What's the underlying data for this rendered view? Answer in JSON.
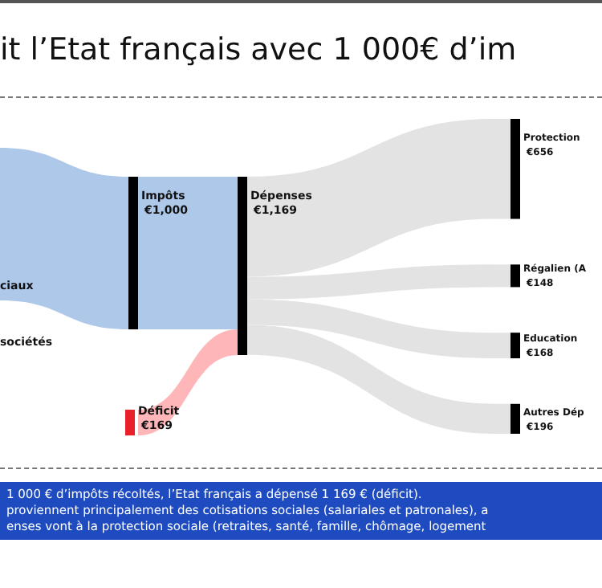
{
  "chart_data": {
    "type": "other",
    "title": "it l’Etat français avec 1 000€ d’im",
    "categories": [
      "Impôts",
      "Déficit",
      "Dépenses",
      "Protection",
      "Régalien (A",
      "Education",
      "Autres Dép"
    ],
    "values": [
      1000,
      169,
      1169,
      656,
      148,
      168,
      196
    ],
    "value_labels": [
      "€1,000",
      "€169",
      "€1,169",
      "€656",
      "€148",
      "€168",
      "€196"
    ],
    "colors": [
      "#aec8e9",
      "#ffb6b8",
      "#e3e3e3",
      "#e3e3e3",
      "#e3e3e3",
      "#e3e3e3",
      "#e3e3e3"
    ],
    "annotations": [
      "ciaux",
      "sociétés",
      "1 000 € d’impôts récoltés, l’Etat français a dépensé 1 169 € (déficit).",
      "proviennent principalement des cotisations sociales (salariales et patronales), a",
      "enses vont à la protection sociale (retraites, santé, famille, chômage, logement"
    ]
  }
}
